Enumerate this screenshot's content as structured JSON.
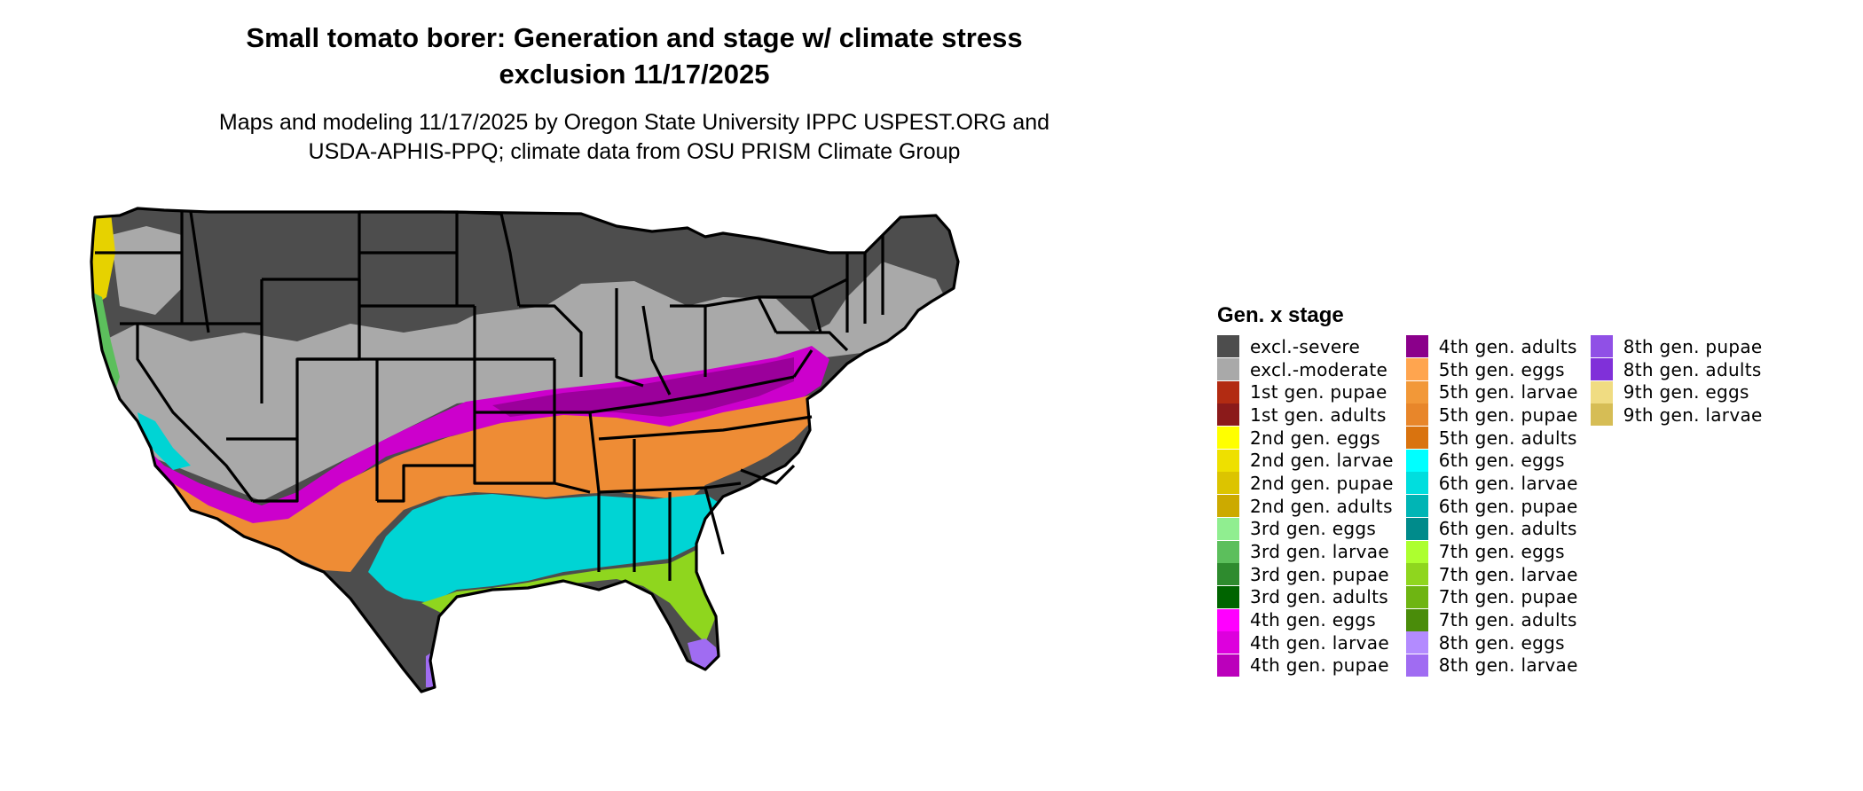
{
  "title_line1": "Small tomato borer: Generation and stage w/ climate stress",
  "title_line2": "exclusion 11/17/2025",
  "subtitle_line1": "Maps and modeling 11/17/2025 by Oregon State University IPPC USPEST.ORG and",
  "subtitle_line2": "USDA-APHIS-PPQ; climate data from OSU PRISM Climate Group",
  "legend": {
    "title": "Gen. x stage",
    "columns": [
      [
        {
          "label": "excl.-severe",
          "color": "#4d4d4d"
        },
        {
          "label": "excl.-moderate",
          "color": "#a9a9a9"
        },
        {
          "label": "1st gen. pupae",
          "color": "#b22b12"
        },
        {
          "label": "1st gen. adults",
          "color": "#8b1a1a"
        },
        {
          "label": "2nd gen. eggs",
          "color": "#ffff00"
        },
        {
          "label": "2nd gen. larvae",
          "color": "#eee000"
        },
        {
          "label": "2nd gen. pupae",
          "color": "#dcc400"
        },
        {
          "label": "2nd gen. adults",
          "color": "#ccaa00"
        },
        {
          "label": "3rd gen. eggs",
          "color": "#90ee90"
        },
        {
          "label": "3rd gen. larvae",
          "color": "#5cbf5c"
        },
        {
          "label": "3rd gen. pupae",
          "color": "#2e8b2e"
        },
        {
          "label": "3rd gen. adults",
          "color": "#006400"
        },
        {
          "label": "4th gen. eggs",
          "color": "#ff00ff"
        },
        {
          "label": "4th gen. larvae",
          "color": "#dd00dd"
        },
        {
          "label": "4th gen. pupae",
          "color": "#bb00bb"
        }
      ],
      [
        {
          "label": "4th gen. adults",
          "color": "#8b008b"
        },
        {
          "label": "5th gen. eggs",
          "color": "#ffa54f"
        },
        {
          "label": "5th gen. larvae",
          "color": "#f29838"
        },
        {
          "label": "5th gen. pupae",
          "color": "#e8862a"
        },
        {
          "label": "5th gen. adults",
          "color": "#d9730f"
        },
        {
          "label": "6th gen. eggs",
          "color": "#00ffff"
        },
        {
          "label": "6th gen. larvae",
          "color": "#00dede"
        },
        {
          "label": "6th gen. pupae",
          "color": "#00b5b5"
        },
        {
          "label": "6th gen. adults",
          "color": "#008b8b"
        },
        {
          "label": "7th gen. eggs",
          "color": "#adff2f"
        },
        {
          "label": "7th gen. larvae",
          "color": "#8fd61e"
        },
        {
          "label": "7th gen. pupae",
          "color": "#6eb512"
        },
        {
          "label": "7th gen. adults",
          "color": "#4a8c0a"
        },
        {
          "label": "8th gen. eggs",
          "color": "#b38bff"
        },
        {
          "label": "8th gen. larvae",
          "color": "#a06cf2"
        }
      ],
      [
        {
          "label": "8th gen. pupae",
          "color": "#9050e6"
        },
        {
          "label": "8th gen. adults",
          "color": "#8030d9"
        },
        {
          "label": "9th gen. eggs",
          "color": "#f0dc82"
        },
        {
          "label": "9th gen. larvae",
          "color": "#d6bd55"
        }
      ]
    ]
  },
  "map_colors": {
    "severe": "#4d4d4d",
    "moderate": "#a9a9a9",
    "gen2": "#e6d200",
    "gen3": "#5cbf5c",
    "gen4": "#cc00cc",
    "gen4dark": "#9b009b",
    "gen5": "#ee8c35",
    "gen6": "#00d4d4",
    "gen7": "#8fd61e",
    "gen8": "#a06cf2",
    "border": "#000000"
  }
}
